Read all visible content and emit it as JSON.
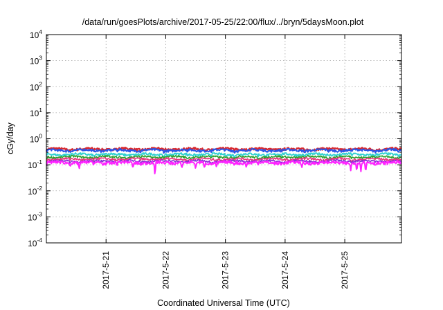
{
  "chart_data": {
    "type": "line",
    "title": "/data/run/goesPlots/archive/2017-05-25/22:00/flux/../bryn/5daysMoon.plot",
    "xlabel": "Coordinated Universal Time (UTC)",
    "ylabel": "cGy/day",
    "yscale": "log",
    "ylim": [
      0.0001,
      10000
    ],
    "xlim": [
      0.0,
      5.95
    ],
    "grid": true,
    "y_ticks": [
      {
        "base": "10",
        "exp": "4",
        "value": 10000
      },
      {
        "base": "10",
        "exp": "3",
        "value": 1000
      },
      {
        "base": "10",
        "exp": "2",
        "value": 100
      },
      {
        "base": "10",
        "exp": "1",
        "value": 10
      },
      {
        "base": "10",
        "exp": "0",
        "value": 1
      },
      {
        "base": "10",
        "exp": "-1",
        "value": 0.1
      },
      {
        "base": "10",
        "exp": "-2",
        "value": 0.01
      },
      {
        "base": "10",
        "exp": "-3",
        "value": 0.001
      },
      {
        "base": "10",
        "exp": "-4",
        "value": 0.0001
      }
    ],
    "x_ticks": [
      {
        "label": "2017-5-21",
        "value": 1.0
      },
      {
        "label": "2017-5-22",
        "value": 2.0
      },
      {
        "label": "2017-5-23",
        "value": 3.0
      },
      {
        "label": "2017-5-24",
        "value": 4.0
      },
      {
        "label": "2017-5-25",
        "value": 5.0
      }
    ],
    "series_styles": [
      {
        "color": "#d8282e",
        "base": 0.4,
        "amp": 0.08,
        "width": 2.2
      },
      {
        "color": "#2b55e6",
        "base": 0.36,
        "amp": 0.07,
        "width": 2.0
      },
      {
        "color": "#2fd0d0",
        "base": 0.25,
        "amp": 0.05,
        "width": 1.8
      },
      {
        "color": "#2ca02c",
        "base": 0.2,
        "amp": 0.035,
        "width": 1.6
      },
      {
        "color": "#e63a7d",
        "base": 0.165,
        "amp": 0.03,
        "width": 1.6
      },
      {
        "color": "#8c2bd6",
        "base": 0.138,
        "amp": 0.025,
        "width": 1.6
      },
      {
        "color": "#ff22ff",
        "base": 0.12,
        "amp": 0.03,
        "width": 2.0,
        "dips": true
      }
    ],
    "dips": [
      {
        "x": 0.55,
        "y": 0.065
      },
      {
        "x": 0.95,
        "y": 0.09
      },
      {
        "x": 1.45,
        "y": 0.07
      },
      {
        "x": 1.82,
        "y": 0.03
      },
      {
        "x": 2.27,
        "y": 0.07
      },
      {
        "x": 2.5,
        "y": 0.065
      },
      {
        "x": 2.65,
        "y": 0.07
      },
      {
        "x": 2.85,
        "y": 0.08
      },
      {
        "x": 3.35,
        "y": 0.075
      },
      {
        "x": 4.28,
        "y": 0.075
      },
      {
        "x": 5.1,
        "y": 0.06
      },
      {
        "x": 5.2,
        "y": 0.05
      },
      {
        "x": 5.27,
        "y": 0.055
      },
      {
        "x": 5.35,
        "y": 0.045
      }
    ]
  }
}
